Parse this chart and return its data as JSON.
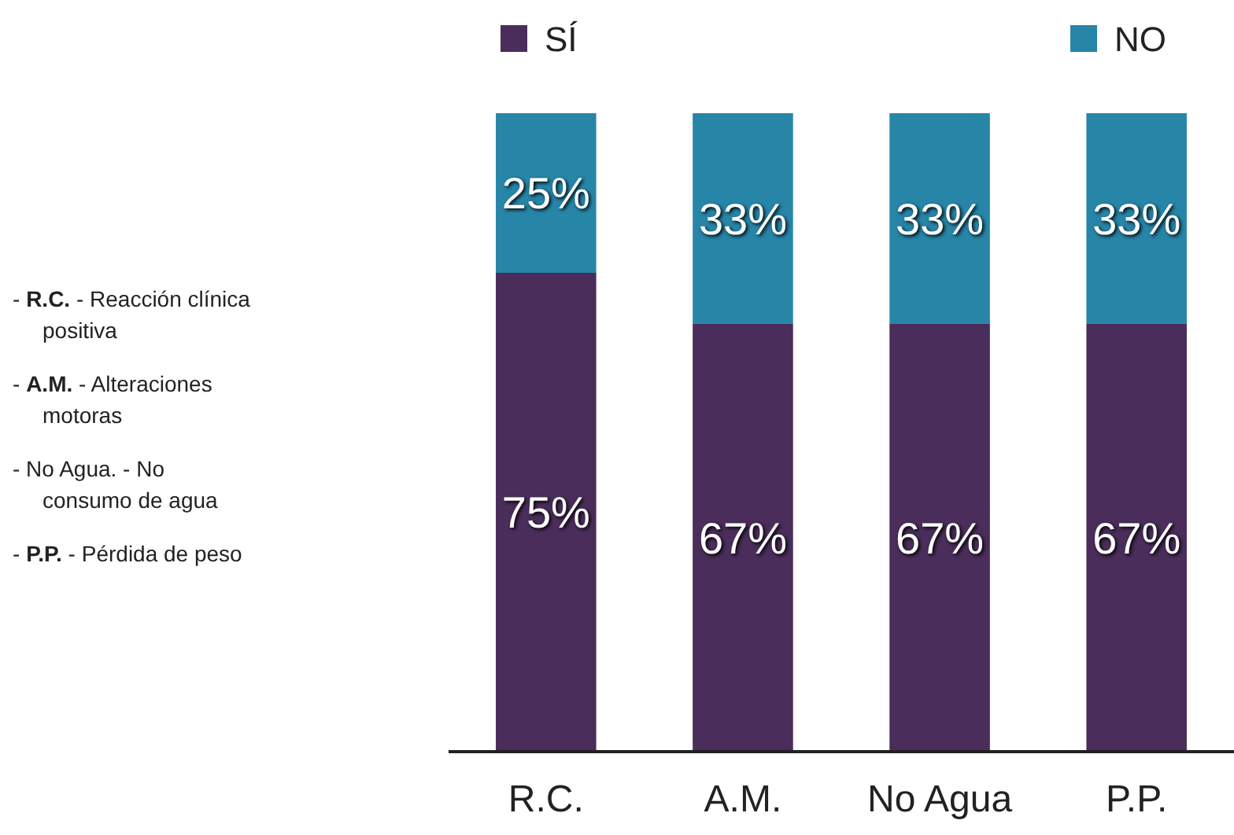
{
  "chart_data": {
    "type": "bar",
    "stacked": true,
    "categories": [
      "R.C.",
      "A.M.",
      "No Agua",
      "P.P."
    ],
    "series": [
      {
        "name": "SÍ",
        "color": "#4a2d5a",
        "values": [
          75,
          67,
          67,
          67
        ],
        "value_labels": [
          "75%",
          "67%",
          "67%",
          "67%"
        ]
      },
      {
        "name": "NO",
        "color": "#2785a8",
        "values": [
          25,
          33,
          33,
          33
        ],
        "value_labels": [
          "25%",
          "33%",
          "33%",
          "33%"
        ]
      }
    ],
    "legend": "top",
    "annotations": [
      "- R.C. - Reacción clínica positiva",
      "- A.M. - Alteraciones motoras",
      "- No Agua. - No consumo de agua",
      "- P.P. - Pérdida de peso"
    ]
  }
}
